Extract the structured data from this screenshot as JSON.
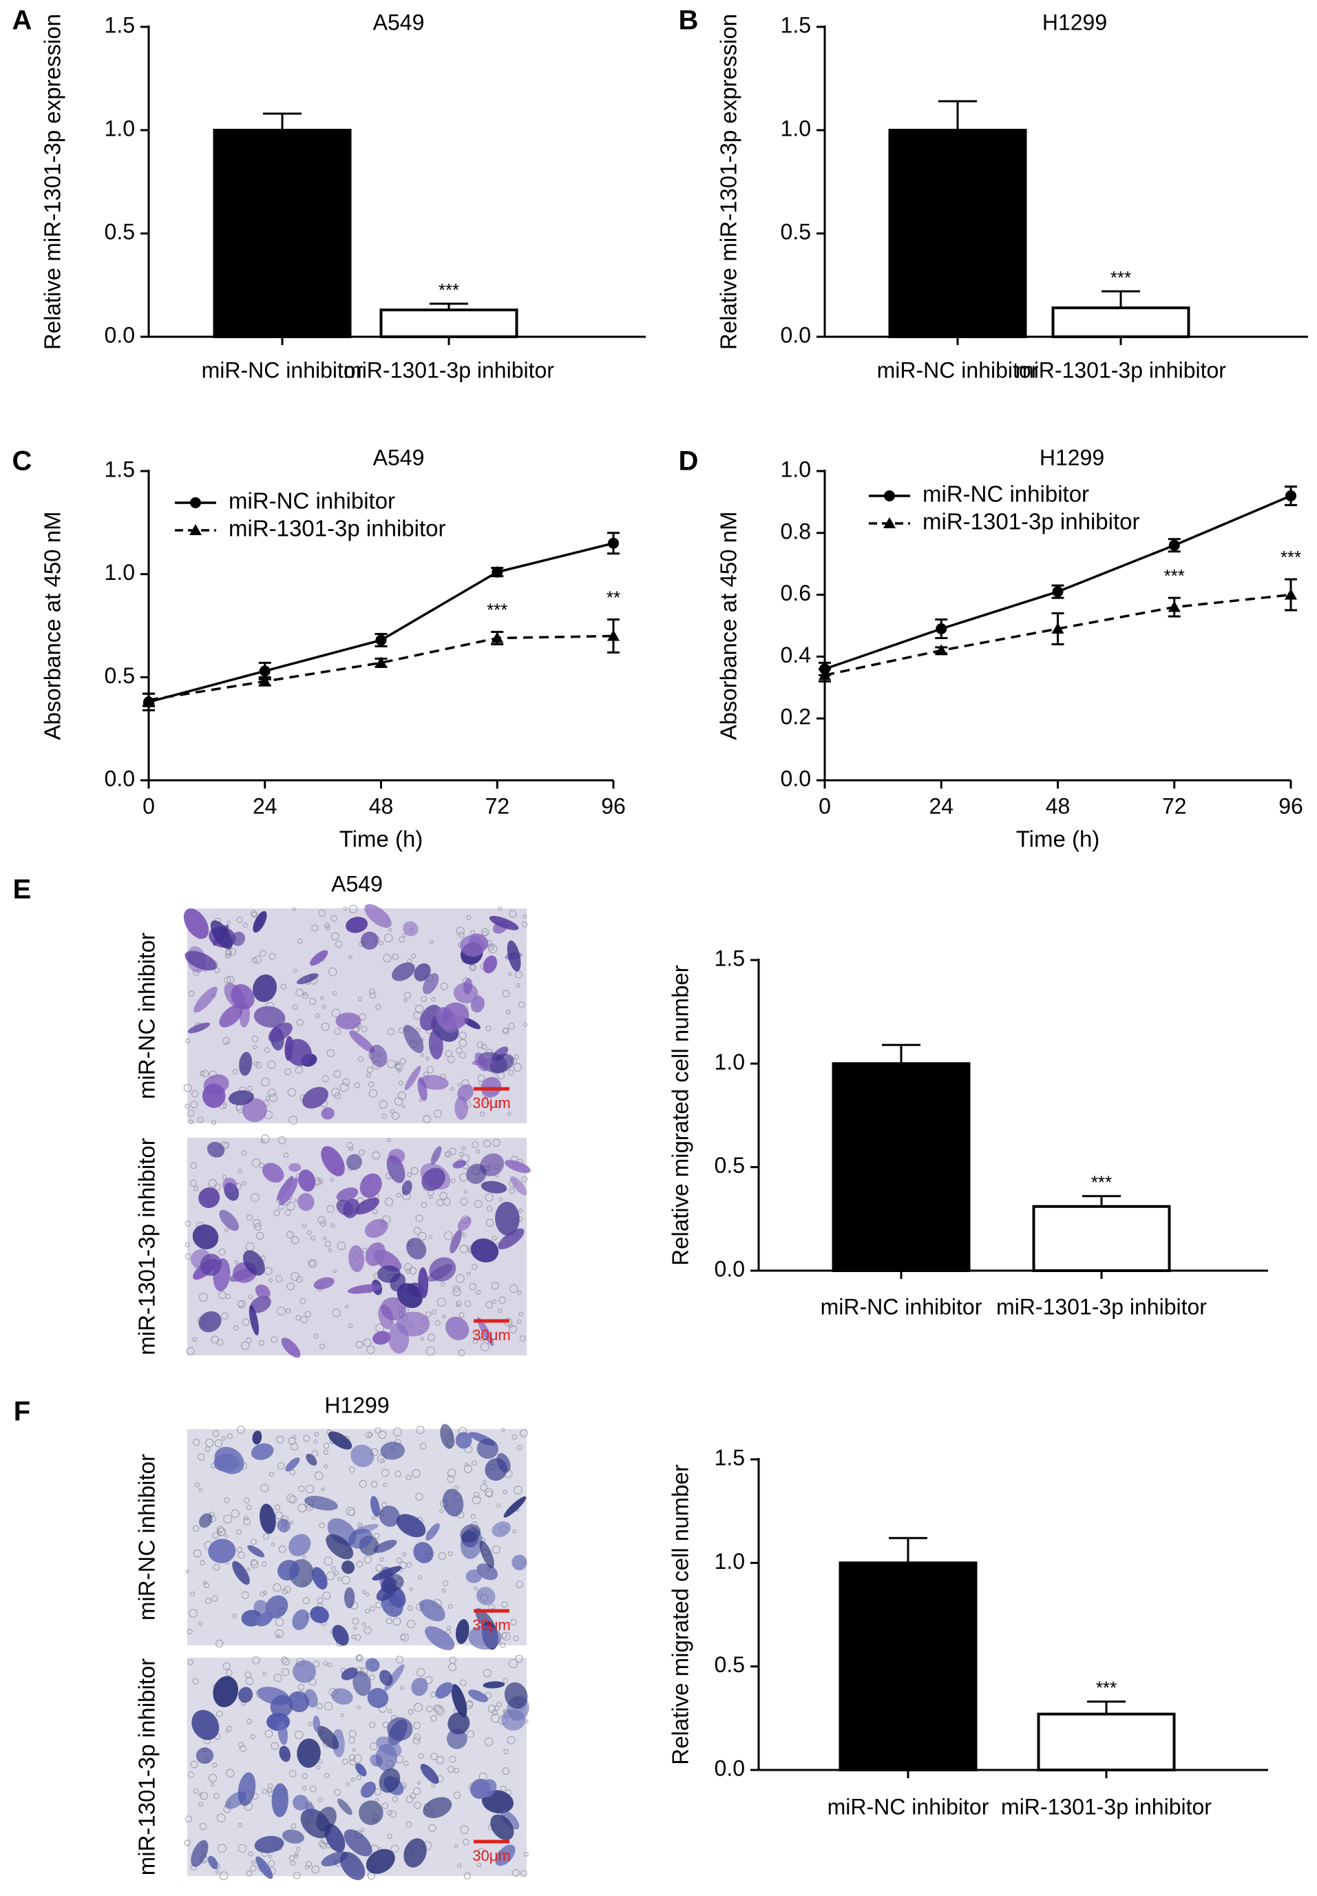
{
  "chart_data": [
    {
      "type": "bar",
      "panel": "A",
      "title": "A549",
      "y_label": "Relative miR-1301-3p expression",
      "categories": [
        "miR-NC inhibitor",
        "miR-1301-3p inhibitor"
      ],
      "values": [
        1.0,
        0.13
      ],
      "errors": [
        0.08,
        0.03
      ],
      "colors": [
        "#000000",
        "#ffffff"
      ],
      "value_annotations": [
        null,
        "***"
      ],
      "ylim": [
        0,
        1.5
      ],
      "yticks": [
        {
          "value": 0,
          "label": "0.0"
        },
        0.5,
        {
          "value": 1,
          "label": "1.0"
        },
        1.5
      ]
    },
    {
      "type": "bar",
      "panel": "B",
      "title": "H1299",
      "y_label": "Relative miR-1301-3p expression",
      "categories": [
        "miR-NC inhibitor",
        "miR-1301-3p inhibitor"
      ],
      "values": [
        1.0,
        0.14
      ],
      "errors": [
        0.14,
        0.08
      ],
      "colors": [
        "#000000",
        "#ffffff"
      ],
      "value_annotations": [
        null,
        "***"
      ],
      "ylim": [
        0,
        1.5
      ],
      "yticks": [
        {
          "value": 0,
          "label": "0.0"
        },
        0.5,
        {
          "value": 1,
          "label": "1.0"
        },
        1.5
      ]
    },
    {
      "type": "line",
      "panel": "C",
      "title": "A549",
      "x_label": "Time (h)",
      "y_label": "Absorbance at 450 nM",
      "x": [
        0,
        24,
        48,
        72,
        96
      ],
      "xlim": [
        0,
        96
      ],
      "xticks": [
        0,
        24,
        48,
        72,
        96
      ],
      "ylim": [
        0,
        1.5
      ],
      "yticks": [
        {
          "value": 0,
          "label": "0.0"
        },
        0.5,
        {
          "value": 1,
          "label": "1.0"
        },
        1.5
      ],
      "legend": "upper left",
      "series": [
        {
          "name": "miR-NC inhibitor",
          "color": "#000000",
          "marker": "circle",
          "dashed": false,
          "values": [
            0.38,
            0.53,
            0.68,
            1.01,
            1.15
          ],
          "errors": [
            0.04,
            0.04,
            0.03,
            0.02,
            0.05
          ]
        },
        {
          "name": "miR-1301-3p inhibitor",
          "color": "#000000",
          "marker": "triangle",
          "dashed": true,
          "values": [
            0.39,
            0.48,
            0.57,
            0.69,
            0.7
          ],
          "errors": [
            0.03,
            0.02,
            0.02,
            0.03,
            0.08
          ],
          "annotations": [
            null,
            null,
            null,
            "***",
            "**"
          ]
        }
      ]
    },
    {
      "type": "line",
      "panel": "D",
      "title": "H1299",
      "x_label": "Time (h)",
      "y_label": "Absorbance at 450 nM",
      "x": [
        0,
        24,
        48,
        72,
        96
      ],
      "xlim": [
        0,
        96
      ],
      "xticks": [
        0,
        24,
        48,
        72,
        96
      ],
      "ylim": [
        0,
        1.0
      ],
      "yticks": [
        {
          "value": 0,
          "label": "0.0"
        },
        0.2,
        0.4,
        0.6,
        0.8,
        {
          "value": 1,
          "label": "1.0"
        }
      ],
      "legend": "upper left",
      "series": [
        {
          "name": "miR-NC inhibitor",
          "color": "#000000",
          "marker": "circle",
          "dashed": false,
          "values": [
            0.36,
            0.49,
            0.61,
            0.76,
            0.92
          ],
          "errors": [
            0.02,
            0.03,
            0.02,
            0.02,
            0.03
          ]
        },
        {
          "name": "miR-1301-3p inhibitor",
          "color": "#000000",
          "marker": "triangle",
          "dashed": true,
          "values": [
            0.34,
            0.42,
            0.49,
            0.56,
            0.6
          ],
          "errors": [
            0.02,
            0.01,
            0.05,
            0.03,
            0.05
          ],
          "annotations": [
            null,
            null,
            null,
            "***",
            "***"
          ]
        }
      ]
    },
    {
      "type": "bar",
      "y_label": "Relative migrated cell number",
      "categories": [
        "miR-NC inhibitor",
        "miR-1301-3p inhibitor"
      ],
      "values": [
        1.0,
        0.31
      ],
      "errors": [
        0.09,
        0.05
      ],
      "colors": [
        "#000000",
        "#ffffff"
      ],
      "value_annotations": [
        null,
        "***"
      ],
      "ylim": [
        0,
        1.5
      ],
      "yticks": [
        {
          "value": 0,
          "label": "0.0"
        },
        0.5,
        {
          "value": 1,
          "label": "1.0"
        },
        1.5
      ]
    },
    {
      "type": "bar",
      "y_label": "Relative migrated cell number",
      "categories": [
        "miR-NC inhibitor",
        "miR-1301-3p inhibitor"
      ],
      "values": [
        1.0,
        0.27
      ],
      "errors": [
        0.12,
        0.06
      ],
      "colors": [
        "#000000",
        "#ffffff"
      ],
      "value_annotations": [
        null,
        "***"
      ],
      "ylim": [
        0,
        1.5
      ],
      "yticks": [
        {
          "value": 0,
          "label": "0.0"
        },
        0.5,
        {
          "value": 1,
          "label": "1.0"
        },
        1.5
      ]
    }
  ],
  "micrographs": [
    {
      "panel": "E",
      "title": "A549",
      "images": [
        {
          "label": "miR-NC inhibitor",
          "scale_bar": "30μm"
        },
        {
          "label": "miR-1301-3p inhibitor",
          "scale_bar": "30μm"
        }
      ]
    },
    {
      "panel": "F",
      "title": "H1299",
      "images": [
        {
          "label": "miR-NC inhibitor",
          "scale_bar": "30μm"
        },
        {
          "label": "miR-1301-3p inhibitor",
          "scale_bar": "30μm"
        }
      ]
    }
  ]
}
